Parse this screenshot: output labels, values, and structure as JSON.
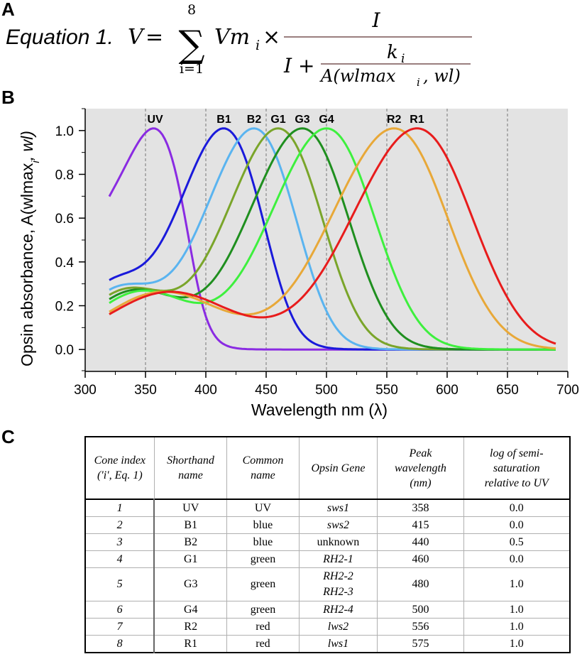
{
  "panels": {
    "a": "A",
    "b": "B",
    "c": "C"
  },
  "equation": {
    "label": "Equation 1.",
    "lhs": "V",
    "eq": "=",
    "sum_upper": "8",
    "sum_lower": "i=1",
    "term": "Vm",
    "term_sub": "i",
    "times": "×",
    "num": "I",
    "den_prefix": "I +",
    "inner_num": "k",
    "inner_num_sub": "i",
    "inner_den": "A(wlmax",
    "inner_den_sub": "i",
    "inner_den_suffix": ", wl)"
  },
  "chart_data": {
    "type": "line",
    "xlabel": "Wavelength nm (λ)",
    "ylabel": "Opsin absorbance, A(wlmax",
    "ylabel_sub": "i",
    "ylabel_suffix": ", wl)",
    "xlim": [
      300,
      700
    ],
    "ylim": [
      -0.1,
      1.1
    ],
    "xticks": [
      300,
      350,
      400,
      450,
      500,
      550,
      600,
      650,
      700
    ],
    "yticks": [
      0.0,
      0.2,
      0.4,
      0.6,
      0.8,
      1.0
    ],
    "ytick_labels": [
      "0.0",
      "0.2",
      "0.4",
      "0.6",
      "0.8",
      "1.0"
    ],
    "vlines": [
      350,
      400,
      450,
      500,
      550,
      600,
      650
    ],
    "x_range": [
      320,
      690
    ],
    "background": "#e3e3e3",
    "series": [
      {
        "name": "UV",
        "peak": 358,
        "color": "#8a2be2"
      },
      {
        "name": "B1",
        "peak": 415,
        "color": "#1a1adb"
      },
      {
        "name": "B2",
        "peak": 440,
        "color": "#5ab4f0"
      },
      {
        "name": "G1",
        "peak": 460,
        "color": "#7aa52a"
      },
      {
        "name": "G3",
        "peak": 480,
        "color": "#1f8f1f"
      },
      {
        "name": "G4",
        "peak": 500,
        "color": "#3ef03e"
      },
      {
        "name": "R2",
        "peak": 556,
        "color": "#e8a838"
      },
      {
        "name": "R1",
        "peak": 575,
        "color": "#e81c1c"
      }
    ]
  },
  "table": {
    "headers": [
      [
        "Cone index",
        "('i', Eq. 1)"
      ],
      [
        "Shorthand",
        "name"
      ],
      [
        "Common",
        "name"
      ],
      [
        "Opsin Gene"
      ],
      [
        "Peak",
        "wavelength",
        "(nm)"
      ],
      [
        "log of semi-",
        "saturation",
        "relative to UV"
      ]
    ],
    "rows": [
      {
        "index": "1",
        "short": "UV",
        "common": "UV",
        "gene": [
          "sws1"
        ],
        "peak": "358",
        "log": "0.0"
      },
      {
        "index": "2",
        "short": "B1",
        "common": "blue",
        "gene": [
          "sws2"
        ],
        "peak": "415",
        "log": "0.0"
      },
      {
        "index": "3",
        "short": "B2",
        "common": "blue",
        "gene": [
          "unknown"
        ],
        "gene_plain": true,
        "peak": "440",
        "log": "0.5"
      },
      {
        "index": "4",
        "short": "G1",
        "common": "green",
        "gene": [
          "RH2-1"
        ],
        "peak": "460",
        "log": "0.0"
      },
      {
        "index": "5",
        "short": "G3",
        "common": "green",
        "gene": [
          "RH2-2",
          "RH2-3"
        ],
        "peak": "480",
        "log": "1.0"
      },
      {
        "index": "6",
        "short": "G4",
        "common": "green",
        "gene": [
          "RH2-4"
        ],
        "peak": "500",
        "log": "1.0"
      },
      {
        "index": "7",
        "short": "R2",
        "common": "red",
        "gene": [
          "lws2"
        ],
        "peak": "556",
        "log": "1.0"
      },
      {
        "index": "8",
        "short": "R1",
        "common": "red",
        "gene": [
          "lws1"
        ],
        "peak": "575",
        "log": "1.0"
      }
    ]
  }
}
